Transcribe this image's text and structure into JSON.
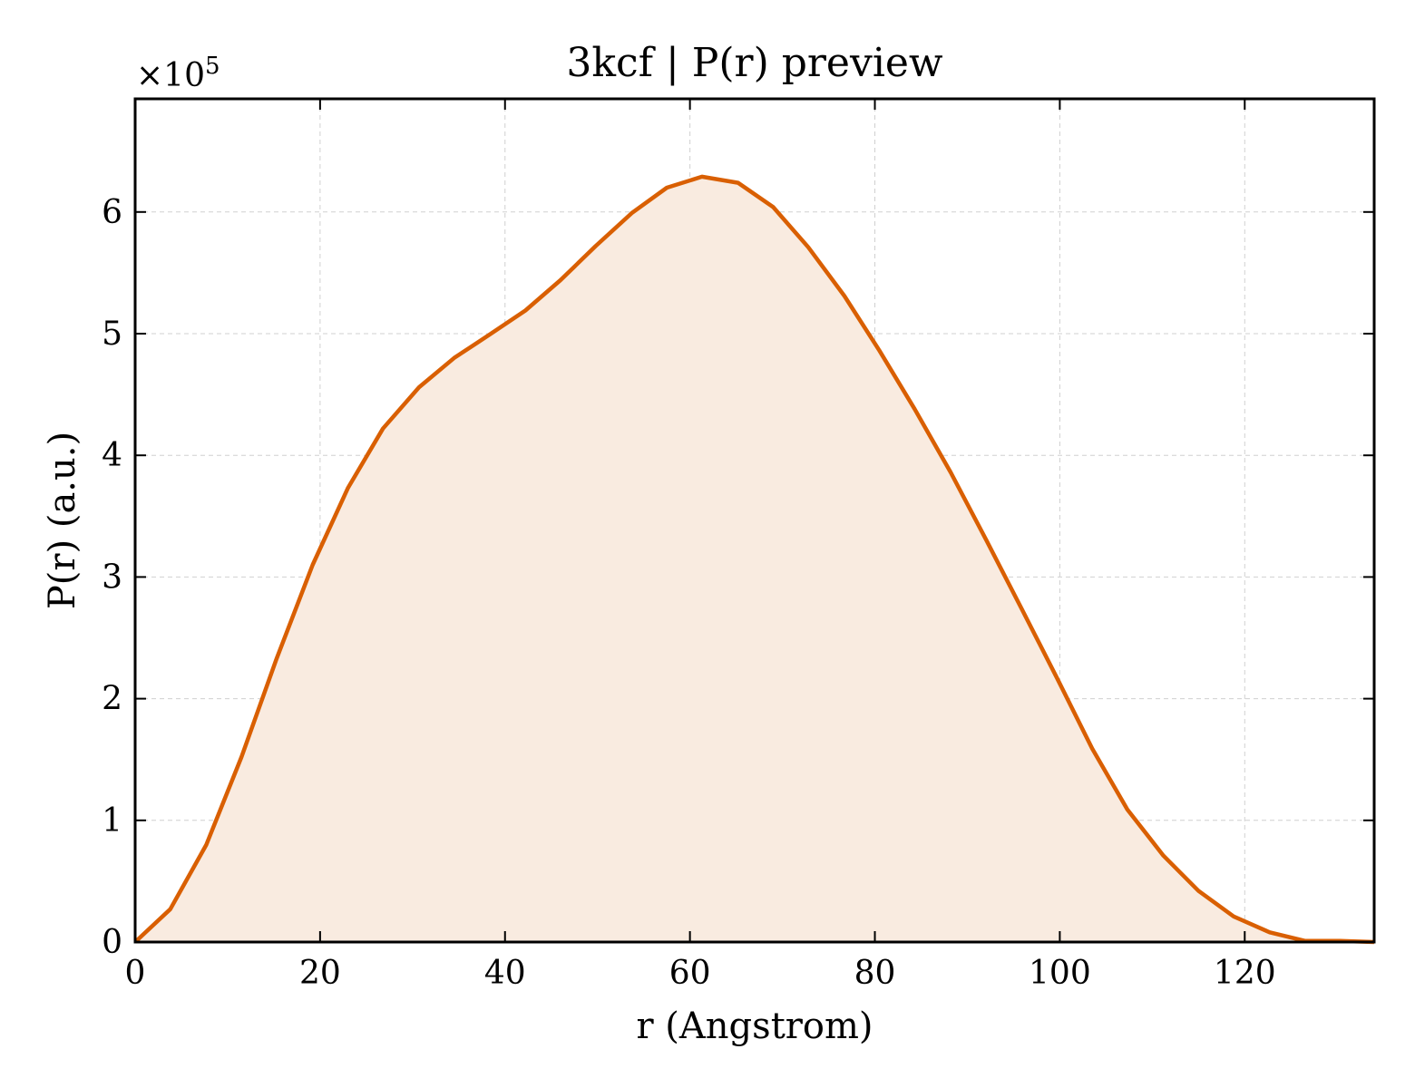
{
  "chart_data": {
    "type": "area",
    "title": "3kcf | P(r) preview",
    "xlabel": "r (Angstrom)",
    "ylabel": "P(r) (a.u.)",
    "y_offset_label": "×10",
    "y_offset_exponent": "5",
    "xlim": [
      0,
      134
    ],
    "ylim": [
      0,
      6.93
    ],
    "y_scale_factor": 100000,
    "x_ticks": [
      0,
      20,
      40,
      60,
      80,
      100,
      120
    ],
    "y_ticks": [
      0,
      1,
      2,
      3,
      4,
      5,
      6
    ],
    "grid": true,
    "line_color": "#d95f02",
    "fill_color": "#f9ebe0",
    "series": [
      {
        "x": [
          0,
          3.8,
          7.7,
          11.5,
          15.3,
          19.2,
          23.0,
          26.8,
          30.7,
          34.5,
          38.3,
          42.2,
          46.0,
          49.8,
          53.7,
          57.5,
          61.3,
          65.2,
          69.0,
          72.8,
          76.7,
          80.5,
          84.3,
          88.2,
          92.0,
          95.8,
          99.7,
          103.5,
          107.3,
          111.2,
          115.0,
          118.8,
          122.7,
          126.5,
          130.3,
          134.0
        ],
        "y": [
          0.0,
          0.27,
          0.8,
          1.52,
          2.33,
          3.1,
          3.73,
          4.22,
          4.56,
          4.8,
          4.99,
          5.19,
          5.44,
          5.72,
          5.99,
          6.2,
          6.29,
          6.24,
          6.04,
          5.71,
          5.31,
          4.86,
          4.38,
          3.86,
          3.31,
          2.75,
          2.17,
          1.59,
          1.09,
          0.71,
          0.42,
          0.21,
          0.08,
          0.01,
          0.01,
          0.0
        ]
      }
    ]
  }
}
